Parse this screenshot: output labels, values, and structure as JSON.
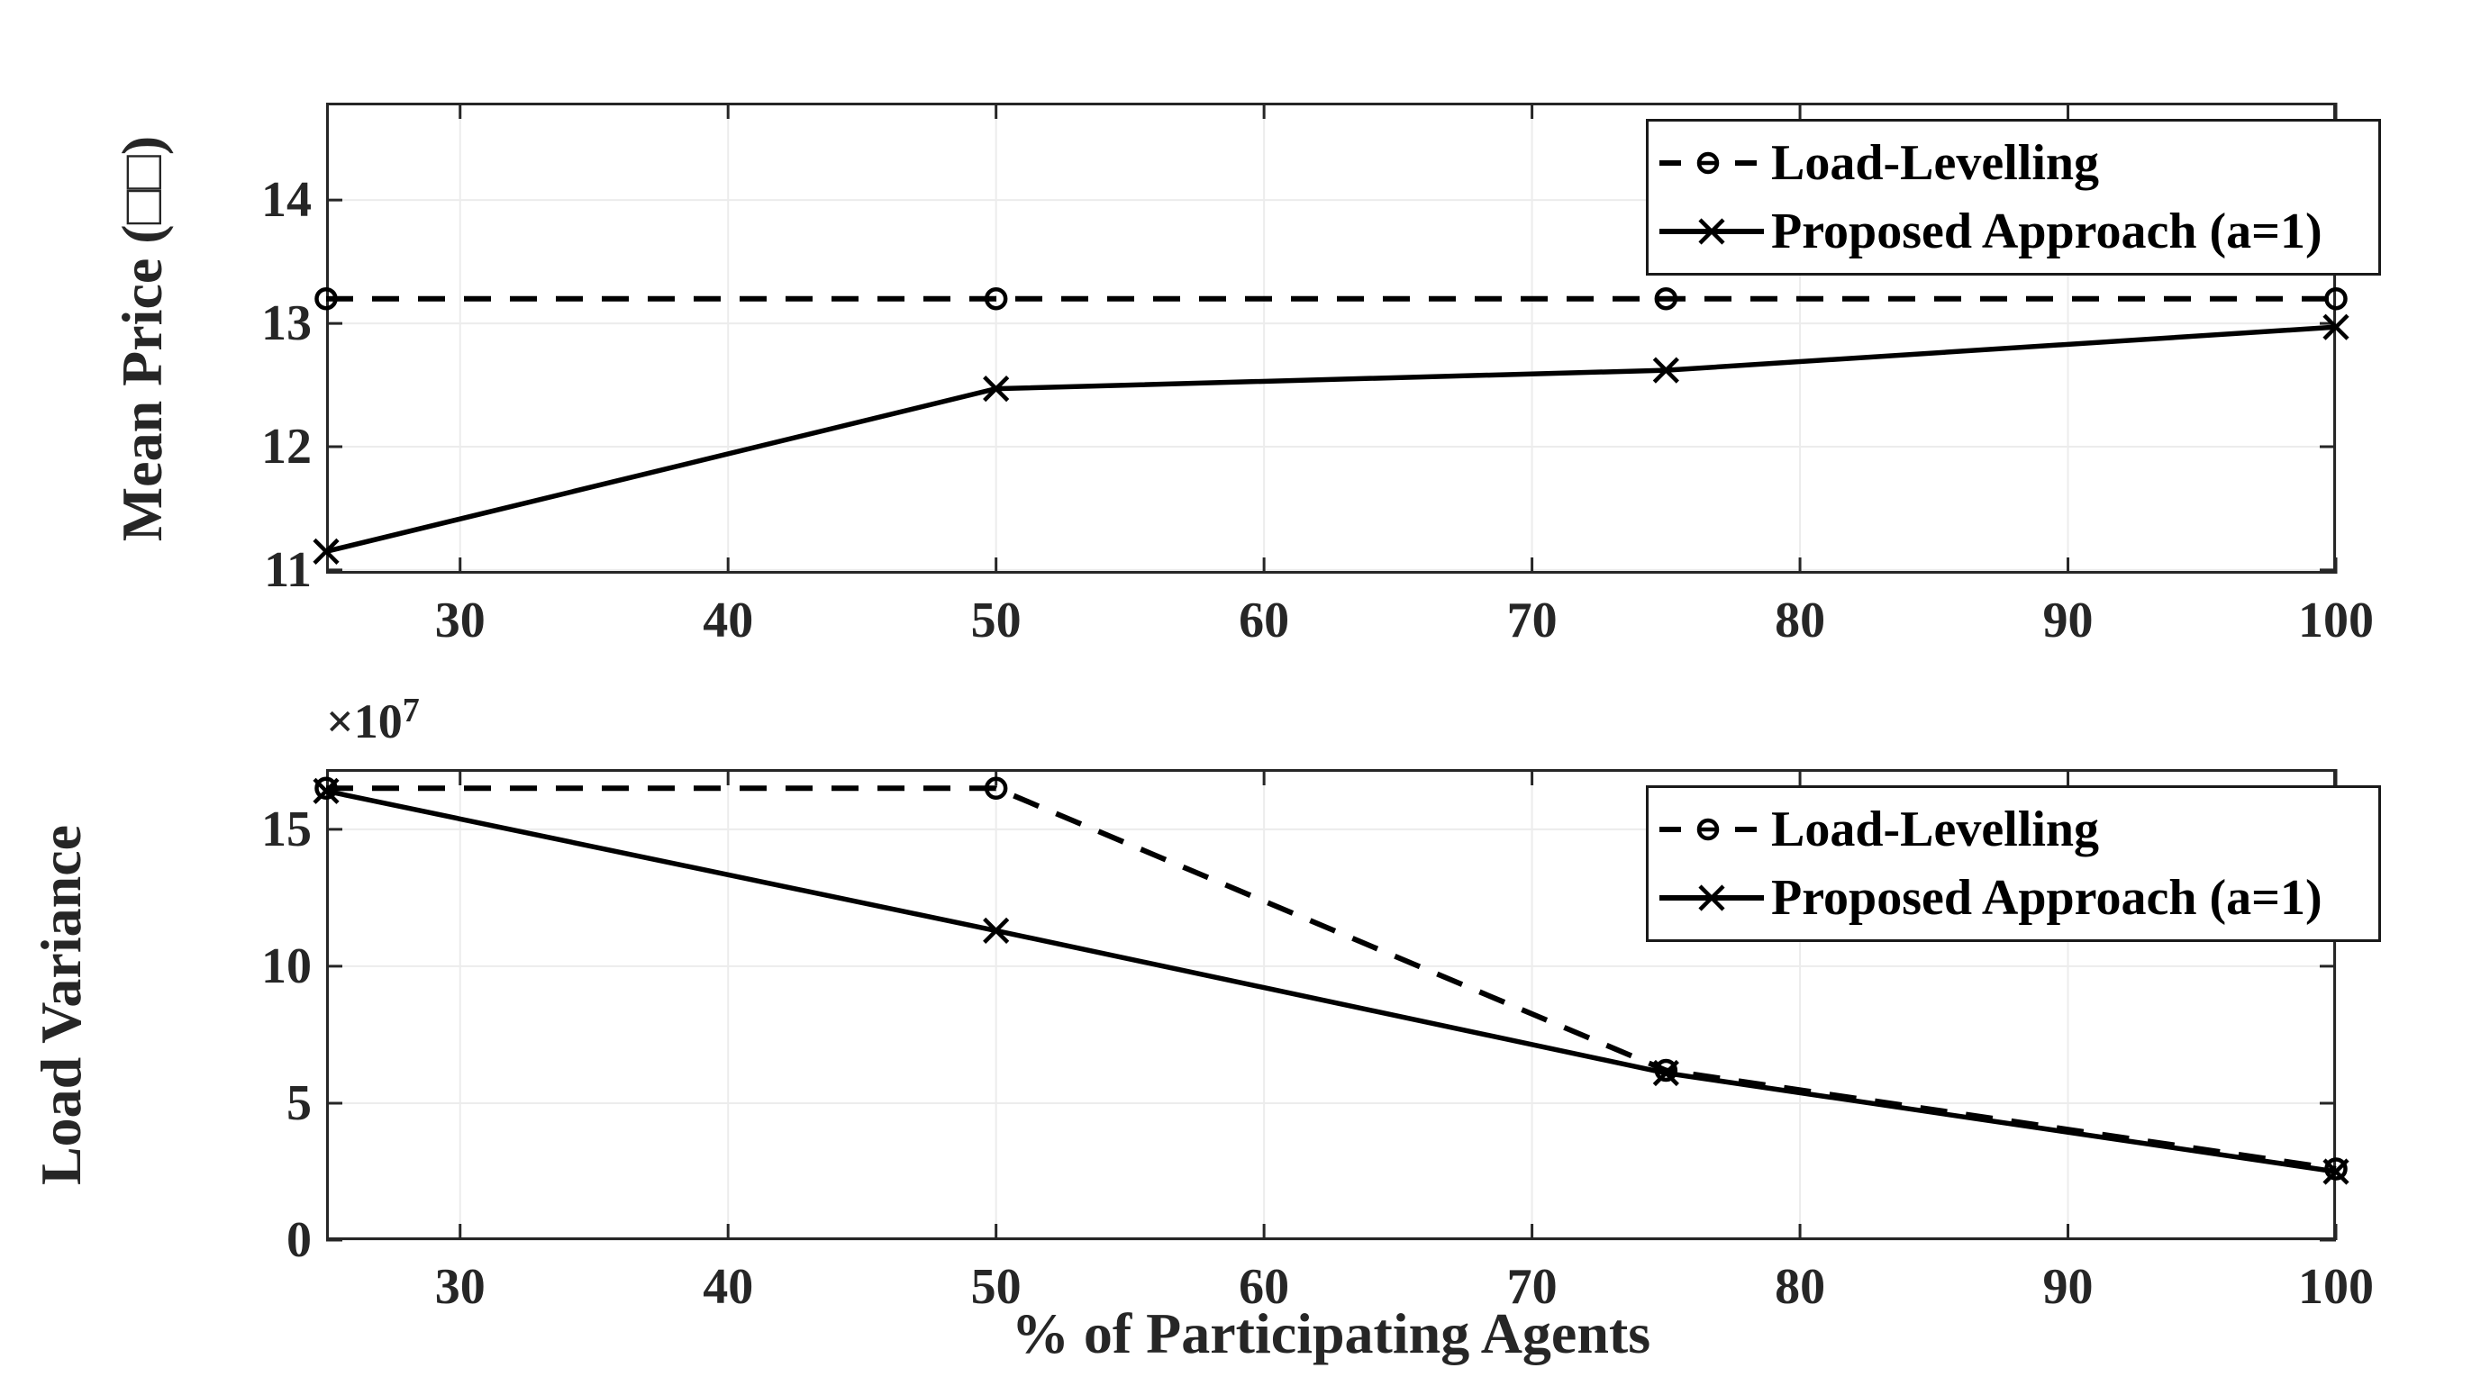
{
  "figure": {
    "background_color": "#ffffff",
    "axis_color": "#262626",
    "grid_color": "#ececec",
    "data_color": "#000000"
  },
  "chart_data": [
    {
      "type": "line",
      "title": "",
      "xlabel": "",
      "ylabel": "Mean Price (□□)",
      "x": [
        25,
        50,
        75,
        100
      ],
      "series": [
        {
          "name": "Load-Levelling",
          "values": [
            13.2,
            13.2,
            13.2,
            13.2
          ],
          "line": "dashed",
          "marker": "circle"
        },
        {
          "name": "Proposed Approach (a=1)",
          "values": [
            11.15,
            12.47,
            12.62,
            12.97
          ],
          "line": "solid",
          "marker": "x"
        }
      ],
      "xlim": [
        25,
        100
      ],
      "ylim": [
        10.97,
        14.79
      ],
      "xticks": [
        30,
        40,
        50,
        60,
        70,
        80,
        90,
        100
      ],
      "yticks": [
        11,
        12,
        13,
        14
      ],
      "grid": true,
      "legend_position": "top-right"
    },
    {
      "type": "line",
      "title": "",
      "xlabel": "% of Participating Agents",
      "ylabel": "Load Variance",
      "y_offset": {
        "base": "×10",
        "exp": "7"
      },
      "x": [
        25,
        50,
        75,
        100
      ],
      "series": [
        {
          "name": "Load-Levelling",
          "values": [
            16.5,
            16.5,
            6.2,
            2.6
          ],
          "line": "dashed",
          "marker": "circle"
        },
        {
          "name": "Proposed Approach (a=1)",
          "values": [
            16.4,
            11.3,
            6.1,
            2.5
          ],
          "line": "solid",
          "marker": "x"
        }
      ],
      "xlim": [
        25,
        100
      ],
      "ylim": [
        0,
        17.2
      ],
      "xticks": [
        30,
        40,
        50,
        60,
        70,
        80,
        90,
        100
      ],
      "yticks": [
        0,
        5,
        10,
        15
      ],
      "grid": true,
      "legend_position": "top-right"
    }
  ]
}
